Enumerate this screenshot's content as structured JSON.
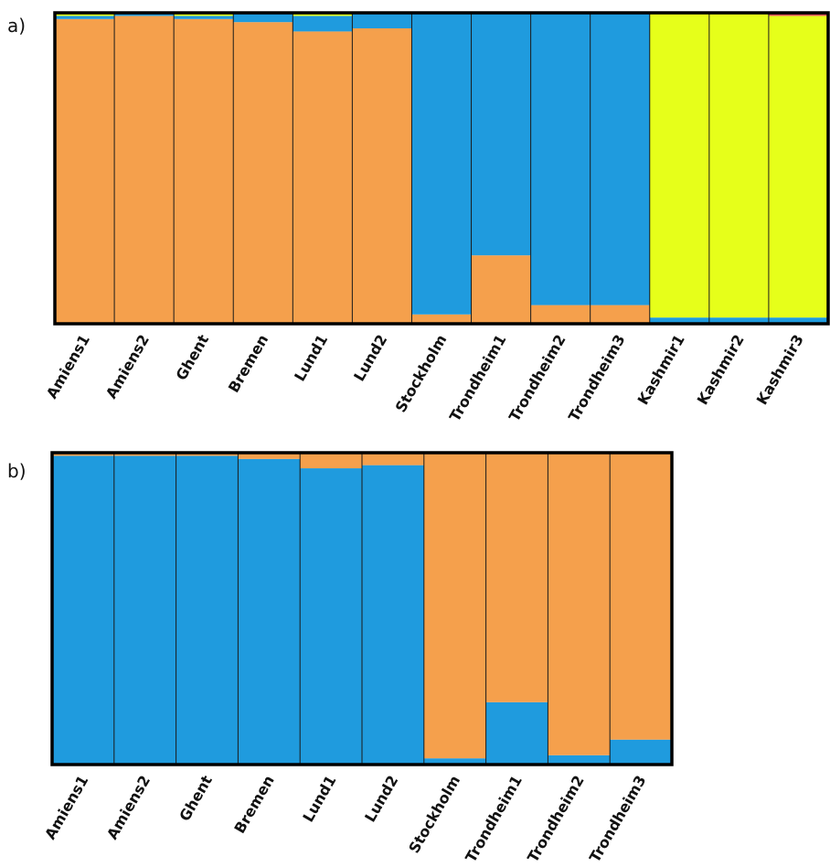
{
  "panels": {
    "a": {
      "label": "a)"
    },
    "b": {
      "label": "b)"
    }
  },
  "colors": {
    "orange": "#F5A04C",
    "blue": "#1F9BDE",
    "yellow": "#E6FF1A",
    "red": "#E0505A",
    "frame": "#000000",
    "divider": "#1a1a1a"
  },
  "chart_data": [
    {
      "type": "bar",
      "stacked": true,
      "ylim": [
        0,
        1
      ],
      "categories": [
        "Amiens1",
        "Amiens2",
        "Ghent",
        "Bremen",
        "Lund1",
        "Lund2",
        "Stockholm",
        "Trondheim1",
        "Trondheim2",
        "Trondheim3",
        "Kashmir1",
        "Kashmir2",
        "Kashmir3"
      ],
      "series": [
        {
          "color": "#F5A04C",
          "values": [
            0.98,
            0.99,
            0.98,
            0.97,
            0.94,
            0.95,
            0.03,
            0.22,
            0.06,
            0.06,
            0.0,
            0.0,
            0.0
          ]
        },
        {
          "color": "#1F9BDE",
          "values": [
            0.01,
            0.01,
            0.01,
            0.03,
            0.05,
            0.05,
            0.97,
            0.78,
            0.94,
            0.94,
            0.02,
            0.02,
            0.02
          ]
        },
        {
          "color": "#E6FF1A",
          "values": [
            0.01,
            0.0,
            0.01,
            0.0,
            0.01,
            0.0,
            0.0,
            0.0,
            0.0,
            0.0,
            0.98,
            0.98,
            0.97
          ]
        },
        {
          "color": "#E0505A",
          "values": [
            0,
            0,
            0,
            0,
            0,
            0,
            0,
            0,
            0,
            0,
            0,
            0,
            0.01
          ]
        }
      ]
    },
    {
      "type": "bar",
      "stacked": true,
      "ylim": [
        0,
        1
      ],
      "categories": [
        "Amiens1",
        "Amiens2",
        "Ghent",
        "Bremen",
        "Lund1",
        "Lund2",
        "Stockholm",
        "Trondheim1",
        "Trondheim2",
        "Trondheim3"
      ],
      "series": [
        {
          "color": "#1F9BDE",
          "values": [
            0.99,
            0.99,
            0.99,
            0.98,
            0.95,
            0.96,
            0.02,
            0.2,
            0.03,
            0.08
          ]
        },
        {
          "color": "#F5A04C",
          "values": [
            0.01,
            0.01,
            0.01,
            0.02,
            0.05,
            0.04,
            0.98,
            0.8,
            0.97,
            0.92
          ]
        }
      ]
    }
  ]
}
